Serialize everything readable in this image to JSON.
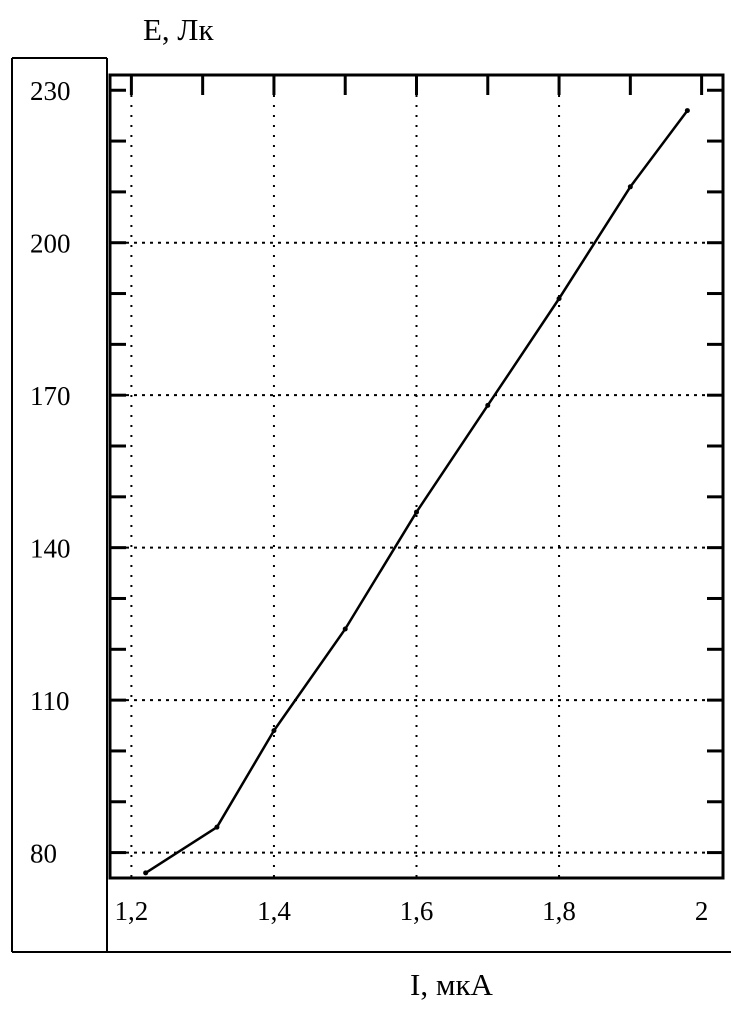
{
  "chart_data": {
    "type": "line",
    "ylabel": "E, Лк",
    "xlabel": "I, мкА",
    "xlim": [
      1.17,
      2.03
    ],
    "ylim": [
      75,
      233
    ],
    "x_ticks": [
      1.2,
      1.4,
      1.6,
      1.8,
      2.0
    ],
    "x_tick_labels": [
      "1,2",
      "1,4",
      "1,6",
      "1,8",
      "2"
    ],
    "y_ticks": [
      80,
      110,
      140,
      170,
      200,
      230
    ],
    "y_tick_labels": [
      "80",
      "110",
      "140",
      "170",
      "200",
      "230"
    ],
    "grid": true,
    "series": [
      {
        "x": [
          1.22,
          1.32,
          1.4,
          1.5,
          1.6,
          1.7,
          1.8,
          1.9,
          1.98
        ],
        "y": [
          76,
          85,
          104,
          124,
          147,
          168,
          189,
          211,
          226
        ]
      }
    ]
  }
}
